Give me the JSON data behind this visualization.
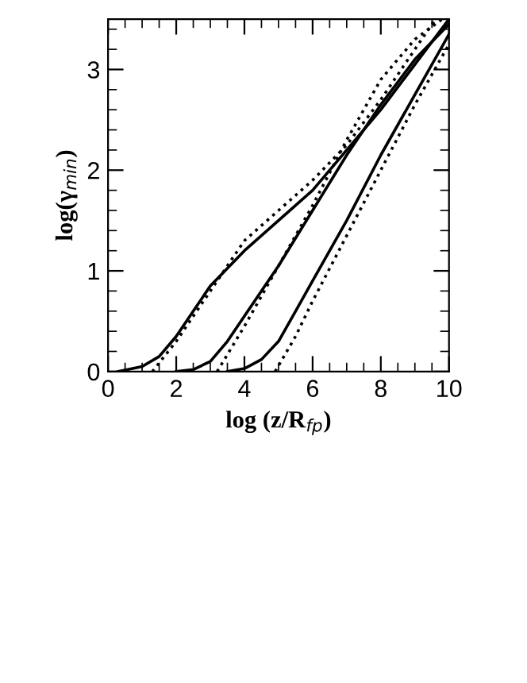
{
  "chart_data": {
    "type": "line",
    "xlabel": "log (z/R$_{fp}$)",
    "ylabel": "log(γ$_{min}$)",
    "xlim": [
      0,
      10
    ],
    "ylim": [
      0,
      3.5
    ],
    "xticks": [
      0,
      2,
      4,
      6,
      8,
      10
    ],
    "yticks": [
      0,
      1,
      2,
      3
    ],
    "grid": false,
    "legend": false,
    "marker": "none",
    "series": [
      {
        "color": "#000000",
        "line_style": "solid",
        "x": [
          0.3,
          1,
          1.5,
          2,
          2.5,
          3,
          4,
          5,
          6,
          7,
          8,
          9,
          10
        ],
        "values": [
          0,
          0.05,
          0.15,
          0.35,
          0.6,
          0.85,
          1.2,
          1.5,
          1.8,
          2.2,
          2.6,
          3.05,
          3.5
        ]
      },
      {
        "color": "#000000",
        "line_style": "solid",
        "x": [
          2,
          2.5,
          3,
          3.5,
          4,
          5,
          6,
          7,
          8,
          9,
          10
        ],
        "values": [
          0,
          0.02,
          0.1,
          0.3,
          0.55,
          1.05,
          1.6,
          2.15,
          2.65,
          3.1,
          3.45
        ]
      },
      {
        "color": "#000000",
        "line_style": "solid",
        "x": [
          3.5,
          4,
          4.5,
          5,
          5.5,
          6,
          7,
          8,
          9,
          10
        ],
        "values": [
          0,
          0.03,
          0.12,
          0.3,
          0.6,
          0.9,
          1.5,
          2.15,
          2.75,
          3.35
        ]
      },
      {
        "color": "#000000",
        "line_style": "dotted",
        "x": [
          1.3,
          2,
          3,
          4,
          5,
          6,
          7,
          8,
          9,
          9.6
        ],
        "values": [
          0,
          0.3,
          0.8,
          1.3,
          1.6,
          1.9,
          2.25,
          2.7,
          3.2,
          3.5
        ]
      },
      {
        "color": "#000000",
        "line_style": "dotted",
        "x": [
          3.2,
          4,
          5,
          6,
          7,
          8,
          9,
          9.8
        ],
        "values": [
          0,
          0.45,
          1.05,
          1.65,
          2.3,
          2.9,
          3.3,
          3.5
        ]
      },
      {
        "color": "#000000",
        "line_style": "dotted",
        "x": [
          4.9,
          5.5,
          6,
          7,
          8,
          9,
          10
        ],
        "values": [
          0,
          0.35,
          0.7,
          1.35,
          2.0,
          2.65,
          3.25
        ]
      }
    ]
  }
}
